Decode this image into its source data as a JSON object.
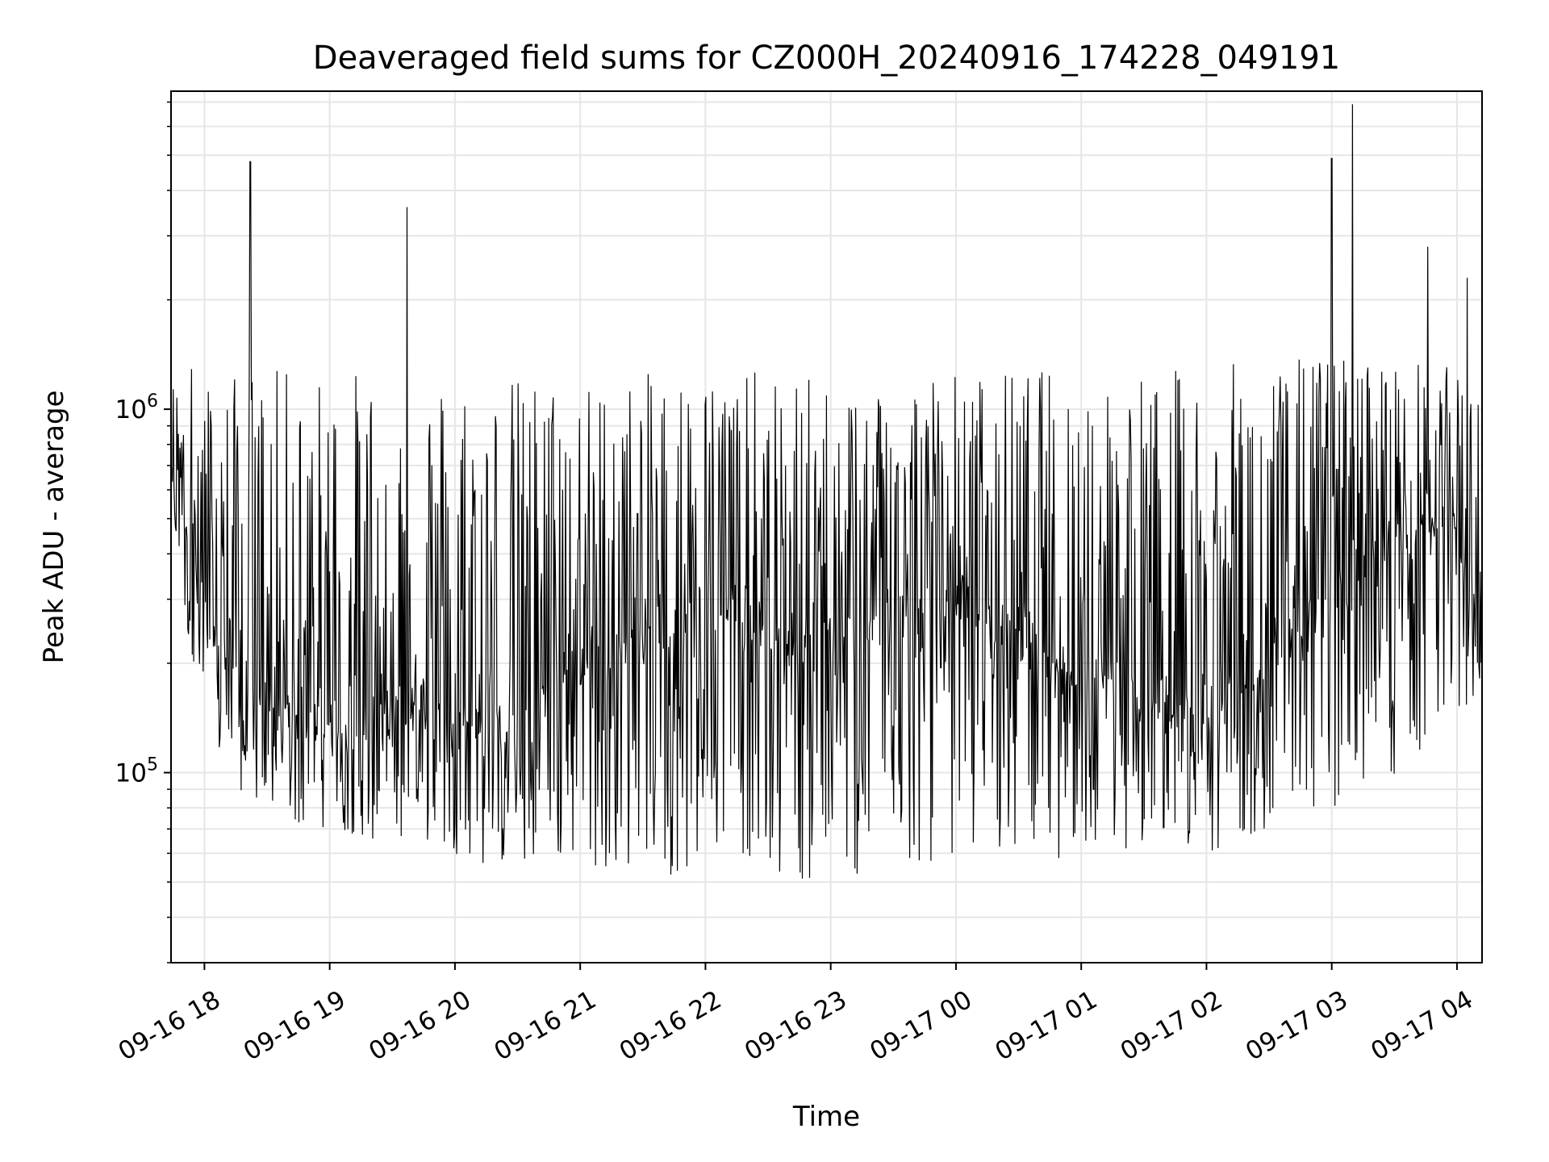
{
  "chart_data": {
    "type": "line",
    "title": "Deaveraged field sums for CZ000H_20240916_174228_049191",
    "xlabel": "Time",
    "ylabel": "Peak ADU - average",
    "yscale": "log",
    "ylim": [
      30000,
      7500000
    ],
    "xlim": [
      "09-16 17:44",
      "09-17 04:12"
    ],
    "grid": true,
    "line_color": "#000000",
    "grid_color": "#e6e6e6",
    "x_ticks": [
      "09-16 18",
      "09-16 19",
      "09-16 20",
      "09-16 21",
      "09-16 22",
      "09-16 23",
      "09-17 00",
      "09-17 01",
      "09-17 02",
      "09-17 03",
      "09-17 04"
    ],
    "y_ticks": [
      {
        "value": 100000,
        "base": "10",
        "exp": "5"
      },
      {
        "value": 1000000,
        "base": "10",
        "exp": "6"
      }
    ],
    "series": [
      {
        "x": [
          "09-16 17:44",
          "09-16 17:50",
          "09-16 17:55",
          "09-16 18:00",
          "09-16 18:05",
          "09-16 18:10",
          "09-16 18:15",
          "09-16 18:20",
          "09-16 18:25",
          "09-16 18:30",
          "09-16 18:35",
          "09-16 18:40",
          "09-16 18:45",
          "09-16 18:50",
          "09-16 18:55",
          "09-16 19:00",
          "09-16 19:10",
          "09-16 19:20",
          "09-16 19:30",
          "09-16 19:40",
          "09-16 19:50",
          "09-16 20:00",
          "09-16 20:15",
          "09-16 20:30",
          "09-16 20:45",
          "09-16 21:00",
          "09-16 21:15",
          "09-16 21:30",
          "09-16 21:45",
          "09-16 22:00",
          "09-16 22:15",
          "09-16 22:30",
          "09-16 22:45",
          "09-16 23:00",
          "09-16 23:15",
          "09-16 23:30",
          "09-16 23:45",
          "09-17 00:00",
          "09-17 00:15",
          "09-17 00:30",
          "09-17 00:45",
          "09-17 01:00",
          "09-17 01:15",
          "09-17 01:30",
          "09-17 01:45",
          "09-17 02:00",
          "09-17 02:15",
          "09-17 02:30",
          "09-17 02:45",
          "09-17 03:00",
          "09-17 03:15",
          "09-17 03:30",
          "09-17 03:45",
          "09-17 04:00",
          "09-17 04:12"
        ],
        "y": [
          700000,
          550000,
          400000,
          300000,
          250000,
          220000,
          200000,
          180000,
          170000,
          160000,
          150000,
          150000,
          145000,
          140000,
          140000,
          135000,
          135000,
          140000,
          150000,
          160000,
          170000,
          150000,
          130000,
          140000,
          180000,
          200000,
          210000,
          230000,
          250000,
          300000,
          270000,
          230000,
          220000,
          230000,
          250000,
          260000,
          280000,
          300000,
          270000,
          240000,
          210000,
          190000,
          180000,
          170000,
          160000,
          150000,
          170000,
          200000,
          260000,
          330000,
          380000,
          420000,
          450000,
          500000,
          200000
        ],
        "upper_envelope": [
          1200000,
          1300000,
          1400000,
          1250000,
          1200000,
          1200000,
          1250000,
          1300000,
          1300000,
          1250000,
          1300000,
          1300000,
          1250000,
          1250000,
          1250000,
          1300000,
          1300000,
          1300000,
          1250000,
          1200000,
          1250000,
          1300000,
          1250000,
          1250000,
          1250000,
          1200000,
          1200000,
          1250000,
          1300000,
          1250000,
          1300000,
          1250000,
          1250000,
          1200000,
          1250000,
          1300000,
          1300000,
          1300000,
          1250000,
          1300000,
          1300000,
          1300000,
          1300000,
          1300000,
          1300000,
          1300000,
          1350000,
          1350000,
          1400000,
          1450000,
          1400000,
          1400000,
          1350000,
          1300000,
          1100000
        ],
        "lower_envelope": [
          600000,
          250000,
          200000,
          130000,
          110000,
          100000,
          90000,
          85000,
          80000,
          80000,
          75000,
          75000,
          70000,
          70000,
          70000,
          68000,
          68000,
          65000,
          62000,
          65000,
          62000,
          60000,
          55000,
          55000,
          55000,
          55000,
          55000,
          55000,
          52000,
          55000,
          60000,
          55000,
          50000,
          48000,
          52000,
          55000,
          55000,
          60000,
          58000,
          60000,
          58000,
          58000,
          60000,
          62000,
          62000,
          60000,
          65000,
          70000,
          75000,
          80000,
          85000,
          95000,
          110000,
          130000,
          180000
        ],
        "spikes": [
          {
            "x": "09-16 18:22",
            "y": 4800000
          },
          {
            "x": "09-16 19:37",
            "y": 3600000
          },
          {
            "x": "09-17 03:00",
            "y": 4900000
          },
          {
            "x": "09-17 03:10",
            "y": 6900000
          },
          {
            "x": "09-17 03:46",
            "y": 2800000
          },
          {
            "x": "09-17 04:05",
            "y": 2300000
          }
        ]
      }
    ]
  }
}
